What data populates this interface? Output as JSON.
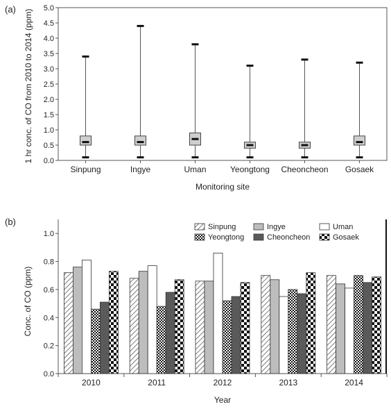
{
  "chart_data": [
    {
      "panel_label": "(a)",
      "type": "box",
      "xlabel": "Monitoring site",
      "ylabel": "1 hr conc. of CO from 2010 to 2014 (ppm)",
      "ylim": [
        0,
        5.0
      ],
      "yticks": [
        "0.0",
        "0.5",
        "1.0",
        "1.5",
        "2.0",
        "2.5",
        "3.0",
        "3.5",
        "4.0",
        "4.5",
        "5.0"
      ],
      "grid": false,
      "categories": [
        "Sinpung",
        "Ingye",
        "Uman",
        "Yeongtong",
        "Cheoncheon",
        "Gosaek"
      ],
      "boxes": [
        {
          "min": 0.1,
          "q1": 0.5,
          "median": 0.6,
          "q3": 0.8,
          "max": 3.4
        },
        {
          "min": 0.1,
          "q1": 0.5,
          "median": 0.6,
          "q3": 0.8,
          "max": 4.4
        },
        {
          "min": 0.1,
          "q1": 0.5,
          "median": 0.7,
          "q3": 0.9,
          "max": 3.8
        },
        {
          "min": 0.1,
          "q1": 0.4,
          "median": 0.5,
          "q3": 0.6,
          "max": 3.1
        },
        {
          "min": 0.1,
          "q1": 0.4,
          "median": 0.5,
          "q3": 0.6,
          "max": 3.3
        },
        {
          "min": 0.1,
          "q1": 0.5,
          "median": 0.6,
          "q3": 0.8,
          "max": 3.2
        }
      ]
    },
    {
      "panel_label": "(b)",
      "type": "bar",
      "xlabel": "Year",
      "ylabel": "Conc. of CO (ppm)",
      "ylim": [
        0,
        1.1
      ],
      "yticks": [
        "0.0",
        "0.2",
        "0.4",
        "0.6",
        "0.8",
        "1.0"
      ],
      "grid": false,
      "legend_position": "top-right",
      "categories": [
        "2010",
        "2011",
        "2012",
        "2013",
        "2014"
      ],
      "series": [
        {
          "name": "Sinpung",
          "values": [
            0.72,
            0.68,
            0.66,
            0.7,
            0.7
          ]
        },
        {
          "name": "Ingye",
          "values": [
            0.76,
            0.73,
            0.66,
            0.67,
            0.64
          ]
        },
        {
          "name": "Uman",
          "values": [
            0.81,
            0.77,
            0.86,
            0.55,
            0.61
          ]
        },
        {
          "name": "Yeongtong",
          "values": [
            0.46,
            0.48,
            0.52,
            0.6,
            0.7
          ]
        },
        {
          "name": "Cheoncheon",
          "values": [
            0.51,
            0.58,
            0.55,
            0.57,
            0.65
          ]
        },
        {
          "name": "Gosaek",
          "values": [
            0.73,
            0.67,
            0.65,
            0.72,
            0.69
          ]
        }
      ]
    }
  ]
}
